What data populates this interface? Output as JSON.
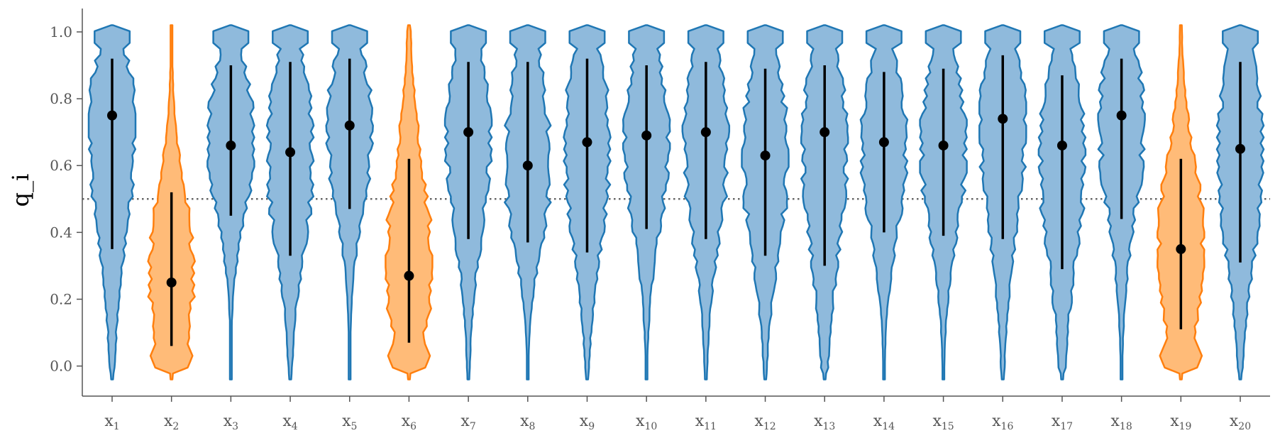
{
  "chart_data": {
    "type": "violin",
    "ylabel": "q_i",
    "ylim": [
      -0.09,
      1.07
    ],
    "y_ticks": [
      "0.0",
      "0.2",
      "0.4",
      "0.6",
      "0.8",
      "1.0"
    ],
    "reference_line": 0.5,
    "colors": {
      "high": "#1f77b4",
      "low": "#ff7f0e",
      "marker": "#000000",
      "reference": "#666666"
    },
    "categories": [
      {
        "label": "x",
        "sub": "1",
        "median": 0.75,
        "low": 0.35,
        "high": 0.92,
        "group": "high"
      },
      {
        "label": "x",
        "sub": "2",
        "median": 0.25,
        "low": 0.06,
        "high": 0.52,
        "group": "low"
      },
      {
        "label": "x",
        "sub": "3",
        "median": 0.66,
        "low": 0.45,
        "high": 0.9,
        "group": "high"
      },
      {
        "label": "x",
        "sub": "4",
        "median": 0.64,
        "low": 0.33,
        "high": 0.91,
        "group": "high"
      },
      {
        "label": "x",
        "sub": "5",
        "median": 0.72,
        "low": 0.47,
        "high": 0.92,
        "group": "high"
      },
      {
        "label": "x",
        "sub": "6",
        "median": 0.27,
        "low": 0.07,
        "high": 0.62,
        "group": "low"
      },
      {
        "label": "x",
        "sub": "7",
        "median": 0.7,
        "low": 0.38,
        "high": 0.91,
        "group": "high"
      },
      {
        "label": "x",
        "sub": "8",
        "median": 0.6,
        "low": 0.37,
        "high": 0.91,
        "group": "high"
      },
      {
        "label": "x",
        "sub": "9",
        "median": 0.67,
        "low": 0.34,
        "high": 0.92,
        "group": "high"
      },
      {
        "label": "x",
        "sub": "10",
        "median": 0.69,
        "low": 0.41,
        "high": 0.9,
        "group": "high"
      },
      {
        "label": "x",
        "sub": "11",
        "median": 0.7,
        "low": 0.38,
        "high": 0.91,
        "group": "high"
      },
      {
        "label": "x",
        "sub": "12",
        "median": 0.63,
        "low": 0.33,
        "high": 0.89,
        "group": "high"
      },
      {
        "label": "x",
        "sub": "13",
        "median": 0.7,
        "low": 0.3,
        "high": 0.9,
        "group": "high"
      },
      {
        "label": "x",
        "sub": "14",
        "median": 0.67,
        "low": 0.4,
        "high": 0.88,
        "group": "high"
      },
      {
        "label": "x",
        "sub": "15",
        "median": 0.66,
        "low": 0.39,
        "high": 0.89,
        "group": "high"
      },
      {
        "label": "x",
        "sub": "16",
        "median": 0.74,
        "low": 0.38,
        "high": 0.93,
        "group": "high"
      },
      {
        "label": "x",
        "sub": "17",
        "median": 0.66,
        "low": 0.29,
        "high": 0.87,
        "group": "high"
      },
      {
        "label": "x",
        "sub": "18",
        "median": 0.75,
        "low": 0.44,
        "high": 0.92,
        "group": "high"
      },
      {
        "label": "x",
        "sub": "19",
        "median": 0.35,
        "low": 0.11,
        "high": 0.62,
        "group": "low"
      },
      {
        "label": "x",
        "sub": "20",
        "median": 0.65,
        "low": 0.31,
        "high": 0.91,
        "group": "high"
      }
    ]
  }
}
